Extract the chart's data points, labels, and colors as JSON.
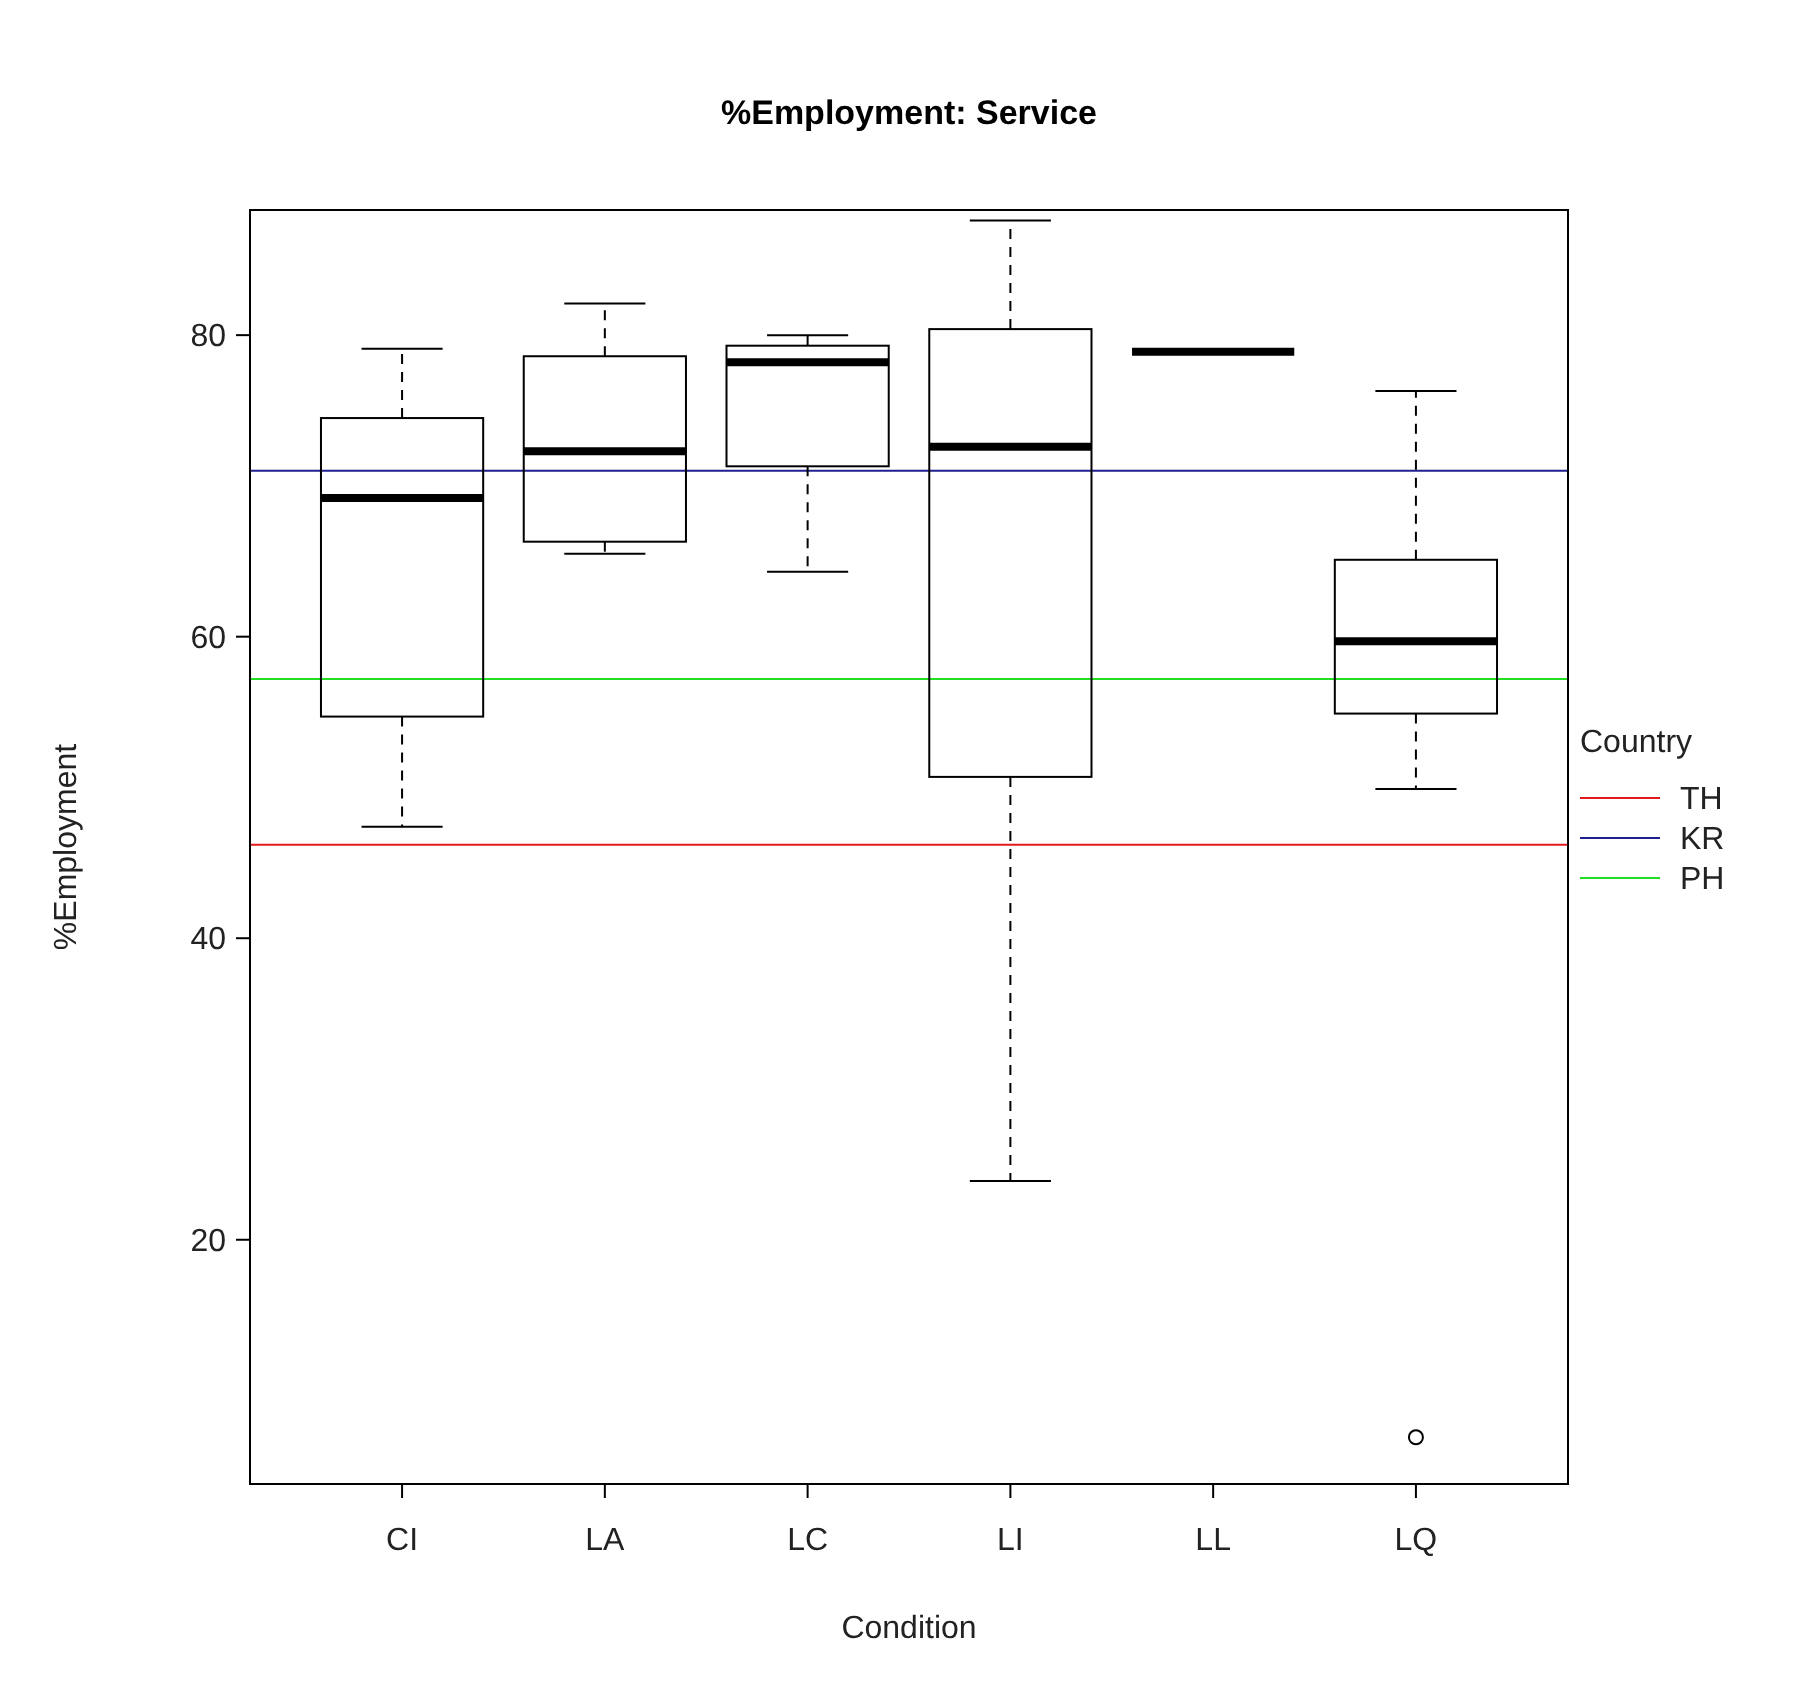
{
  "chart_data": {
    "type": "box",
    "title": "%Employment: Service",
    "xlabel": "Condition",
    "ylabel": "%Employment",
    "legend_title": "Country",
    "categories": [
      "CI",
      "LA",
      "LC",
      "LI",
      "LL",
      "LQ"
    ],
    "boxes": [
      {
        "low": 47.4,
        "q1": 54.7,
        "median": 69.2,
        "q3": 74.5,
        "high": 79.1
      },
      {
        "low": 65.5,
        "q1": 66.3,
        "median": 72.3,
        "q3": 78.6,
        "high": 82.1
      },
      {
        "low": 64.3,
        "q1": 71.3,
        "median": 78.2,
        "q3": 79.3,
        "high": 80.0
      },
      {
        "low": 23.9,
        "q1": 50.7,
        "median": 72.6,
        "q3": 80.4,
        "high": 87.6
      },
      {
        "low": 78.9,
        "q1": 78.9,
        "median": 78.9,
        "q3": 78.9,
        "high": 78.9
      },
      {
        "low": 49.9,
        "q1": 54.9,
        "median": 59.7,
        "q3": 65.1,
        "high": 76.3,
        "outliers": [
          6.9
        ]
      }
    ],
    "ylim": [
      3.8,
      88.3
    ],
    "yticks": [
      20,
      40,
      60,
      80
    ],
    "ref_lines": [
      {
        "axis": "y",
        "value": 46.2,
        "label": "TH",
        "color": "#e31a1c"
      },
      {
        "axis": "y",
        "value": 71.0,
        "label": "KR",
        "color": "#1f1f8f"
      },
      {
        "axis": "y",
        "value": 57.2,
        "label": "PH",
        "color": "#22dd22"
      }
    ],
    "legend": "right",
    "grid": false
  }
}
